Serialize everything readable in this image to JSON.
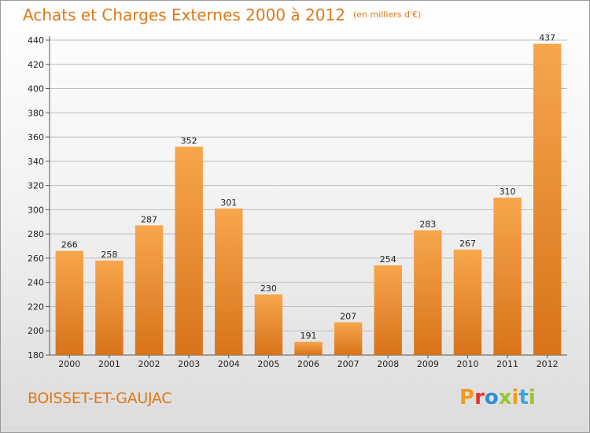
{
  "header": {
    "title": "Achats et Charges Externes 2000 à 2012",
    "unit": "(en milliers d'€)"
  },
  "footer": {
    "place": "BOISSET-ET-GAUJAC",
    "logo": {
      "letters": [
        "P",
        "r",
        "o",
        "x",
        "i",
        "t",
        "i"
      ],
      "colors": [
        "#f39a1e",
        "#e2332b",
        "#2b8fd6",
        "#9bc531",
        "#f39a1e",
        "#3aa5d8",
        "#9bc531"
      ]
    }
  },
  "chart_data": {
    "type": "bar",
    "title": "Achats et Charges Externes 2000 à 2012",
    "subtitle": "(en milliers d'€)",
    "xlabel": "",
    "ylabel": "",
    "categories": [
      "2000",
      "2001",
      "2002",
      "2003",
      "2004",
      "2005",
      "2006",
      "2007",
      "2008",
      "2009",
      "2010",
      "2011",
      "2012"
    ],
    "values": [
      266,
      258,
      287,
      352,
      301,
      230,
      191,
      207,
      254,
      283,
      267,
      310,
      437
    ],
    "ylim": [
      180,
      440
    ],
    "yticks": [
      180,
      200,
      220,
      240,
      260,
      280,
      300,
      320,
      340,
      360,
      380,
      400,
      420,
      440
    ],
    "grid": true,
    "bar_color": "#f0922e"
  }
}
